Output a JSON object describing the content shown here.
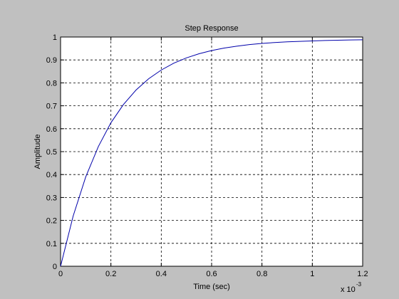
{
  "chart_data": {
    "type": "line",
    "title": "Step Response",
    "x_label": "Time (sec)",
    "y_label": "Amplitude",
    "x_multiplier": {
      "base": "x 10",
      "exponent": "-3"
    },
    "x": [
      0,
      0.05,
      0.1,
      0.15,
      0.2,
      0.25,
      0.3,
      0.35,
      0.4,
      0.45,
      0.5,
      0.55,
      0.6,
      0.65,
      0.7,
      0.75,
      0.8,
      0.85,
      0.9,
      0.95,
      1.0,
      1.05,
      1.1,
      1.15,
      1.2
    ],
    "series": [
      {
        "color": "#0000aa",
        "values": [
          0,
          0.219,
          0.39,
          0.522,
          0.626,
          0.706,
          0.769,
          0.818,
          0.856,
          0.886,
          0.909,
          0.927,
          0.941,
          0.952,
          0.96,
          0.967,
          0.972,
          0.976,
          0.979,
          0.981,
          0.983,
          0.985,
          0.986,
          0.987,
          0.988
        ]
      }
    ],
    "xlim": [
      0,
      1.2
    ],
    "xticks": [
      0,
      0.2,
      0.4,
      0.6,
      0.8,
      1,
      1.2
    ],
    "ylim": [
      0,
      1
    ],
    "yticks": [
      0,
      0.1,
      0.2,
      0.3,
      0.4,
      0.5,
      0.6,
      0.7,
      0.8,
      0.9,
      1
    ],
    "grid": true
  }
}
